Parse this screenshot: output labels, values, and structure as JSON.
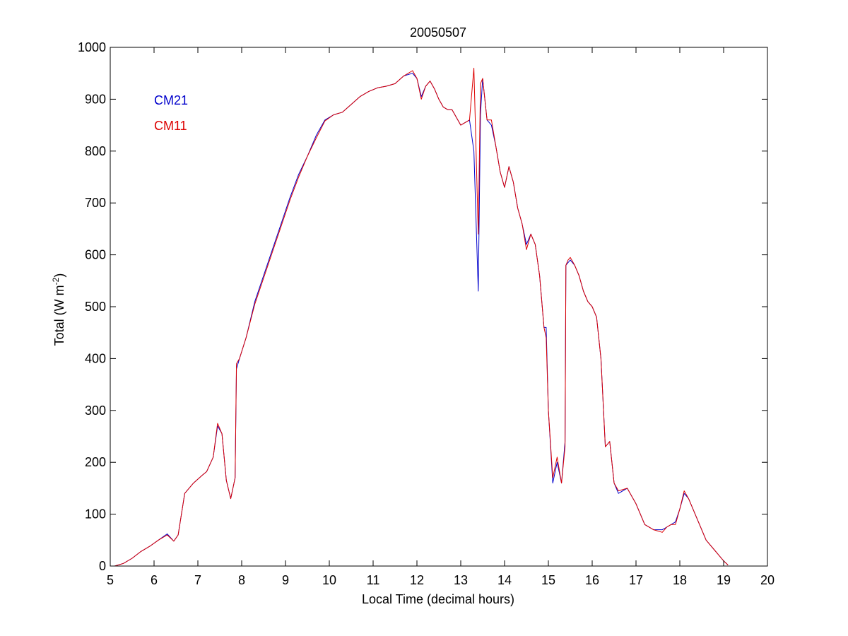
{
  "chart_data": {
    "type": "line",
    "title": "20050507",
    "xlabel": "Local Time (decimal hours)",
    "ylabel": {
      "main": "Total (W m",
      "sup": "-2",
      "end": ")"
    },
    "xlim": [
      5,
      20
    ],
    "ylim": [
      0,
      1000
    ],
    "xticks": [
      5,
      6,
      7,
      8,
      9,
      10,
      11,
      12,
      13,
      14,
      15,
      16,
      17,
      18,
      19,
      20
    ],
    "yticks": [
      0,
      100,
      200,
      300,
      400,
      500,
      600,
      700,
      800,
      900,
      1000
    ],
    "grid": false,
    "legend_position": "top-left",
    "series": [
      {
        "name": "CM21",
        "color": "#0000cc",
        "x": [
          5.1,
          5.3,
          5.5,
          5.7,
          5.9,
          6.1,
          6.3,
          6.45,
          6.55,
          6.7,
          6.9,
          7.1,
          7.2,
          7.35,
          7.45,
          7.55,
          7.65,
          7.75,
          7.85,
          7.88,
          7.95,
          8.1,
          8.3,
          8.5,
          8.7,
          8.9,
          9.1,
          9.3,
          9.5,
          9.7,
          9.9,
          10.1,
          10.3,
          10.5,
          10.7,
          10.9,
          11.1,
          11.3,
          11.5,
          11.7,
          11.9,
          12.0,
          12.1,
          12.2,
          12.3,
          12.4,
          12.5,
          12.6,
          12.7,
          12.8,
          13.0,
          13.2,
          13.3,
          13.4,
          13.45,
          13.5,
          13.55,
          13.6,
          13.7,
          13.8,
          13.9,
          14.0,
          14.1,
          14.2,
          14.3,
          14.4,
          14.5,
          14.6,
          14.7,
          14.8,
          14.9,
          14.95,
          15.0,
          15.1,
          15.2,
          15.3,
          15.38,
          15.4,
          15.45,
          15.5,
          15.6,
          15.7,
          15.8,
          15.9,
          16.0,
          16.1,
          16.2,
          16.3,
          16.4,
          16.5,
          16.6,
          16.8,
          17.0,
          17.2,
          17.4,
          17.6,
          17.7,
          17.8,
          17.9,
          18.0,
          18.1,
          18.2,
          18.4,
          18.6,
          18.8,
          19.0,
          19.1
        ],
        "values": [
          0,
          5,
          15,
          28,
          38,
          50,
          62,
          48,
          60,
          140,
          160,
          175,
          182,
          210,
          270,
          255,
          165,
          130,
          170,
          380,
          400,
          440,
          510,
          560,
          610,
          660,
          710,
          755,
          790,
          830,
          860,
          870,
          875,
          890,
          905,
          915,
          922,
          925,
          930,
          945,
          950,
          940,
          905,
          925,
          935,
          920,
          900,
          885,
          880,
          880,
          850,
          860,
          800,
          530,
          870,
          940,
          900,
          860,
          850,
          810,
          760,
          730,
          770,
          740,
          690,
          660,
          620,
          640,
          620,
          560,
          460,
          460,
          300,
          160,
          200,
          160,
          240,
          580,
          585,
          590,
          580,
          560,
          530,
          510,
          500,
          480,
          400,
          230,
          240,
          160,
          140,
          150,
          120,
          80,
          70,
          70,
          75,
          80,
          85,
          110,
          140,
          130,
          90,
          50,
          30,
          10,
          2
        ]
      },
      {
        "name": "CM11",
        "color": "#dd0000",
        "x": [
          5.1,
          5.3,
          5.5,
          5.7,
          5.9,
          6.1,
          6.3,
          6.45,
          6.55,
          6.7,
          6.9,
          7.1,
          7.2,
          7.35,
          7.45,
          7.55,
          7.65,
          7.75,
          7.85,
          7.88,
          7.95,
          8.1,
          8.3,
          8.5,
          8.7,
          8.9,
          9.1,
          9.3,
          9.5,
          9.7,
          9.9,
          10.1,
          10.3,
          10.5,
          10.7,
          10.9,
          11.1,
          11.3,
          11.5,
          11.7,
          11.9,
          12.0,
          12.1,
          12.2,
          12.3,
          12.4,
          12.5,
          12.6,
          12.7,
          12.8,
          13.0,
          13.2,
          13.3,
          13.4,
          13.45,
          13.5,
          13.55,
          13.6,
          13.7,
          13.8,
          13.9,
          14.0,
          14.1,
          14.2,
          14.3,
          14.4,
          14.5,
          14.6,
          14.7,
          14.8,
          14.9,
          14.95,
          15.0,
          15.1,
          15.2,
          15.3,
          15.38,
          15.4,
          15.45,
          15.5,
          15.6,
          15.7,
          15.8,
          15.9,
          16.0,
          16.1,
          16.2,
          16.3,
          16.4,
          16.5,
          16.6,
          16.8,
          17.0,
          17.2,
          17.4,
          17.6,
          17.7,
          17.8,
          17.9,
          18.0,
          18.1,
          18.2,
          18.4,
          18.6,
          18.8,
          19.0,
          19.1
        ],
        "values": [
          0,
          5,
          15,
          28,
          38,
          50,
          60,
          48,
          60,
          140,
          160,
          175,
          182,
          210,
          275,
          255,
          165,
          130,
          170,
          390,
          400,
          440,
          505,
          555,
          605,
          655,
          705,
          750,
          790,
          825,
          858,
          870,
          875,
          890,
          905,
          915,
          922,
          925,
          930,
          945,
          955,
          940,
          900,
          925,
          935,
          920,
          900,
          885,
          880,
          880,
          850,
          860,
          960,
          640,
          930,
          940,
          900,
          860,
          860,
          810,
          760,
          730,
          770,
          740,
          690,
          660,
          610,
          640,
          620,
          560,
          460,
          440,
          300,
          170,
          210,
          160,
          230,
          580,
          590,
          595,
          580,
          560,
          530,
          510,
          500,
          480,
          400,
          230,
          240,
          160,
          145,
          150,
          120,
          80,
          70,
          65,
          75,
          80,
          80,
          110,
          145,
          130,
          90,
          50,
          30,
          10,
          2
        ]
      }
    ]
  }
}
